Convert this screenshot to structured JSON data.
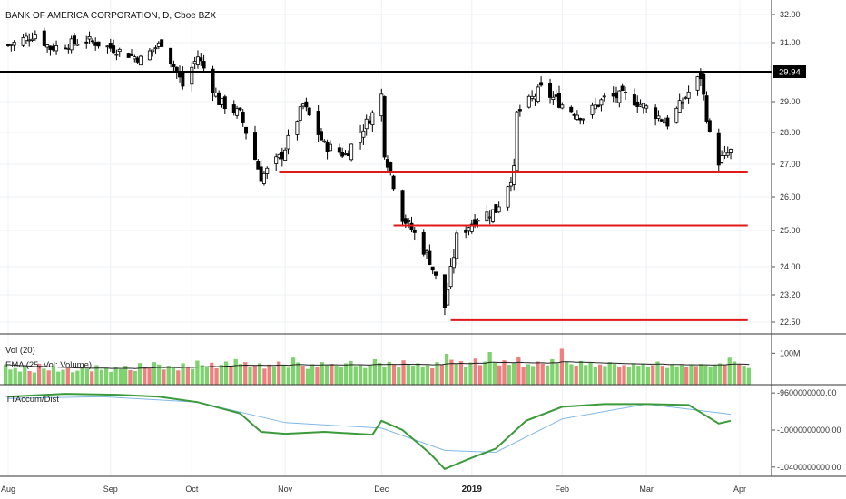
{
  "chart_data": {
    "type": "candlestick",
    "title": "BANK OF AMERICA CORPORATION, D, Cboe BZX",
    "x_labels": [
      {
        "label": "Aug",
        "date": "2018-08-01"
      },
      {
        "label": "Sep",
        "date": "2018-09-04"
      },
      {
        "label": "Oct",
        "date": "2018-10-01"
      },
      {
        "label": "Nov",
        "date": "2018-11-01"
      },
      {
        "label": "Dec",
        "date": "2018-12-03"
      },
      {
        "label": "2019",
        "date": "2019-01-02",
        "bold": true
      },
      {
        "label": "Feb",
        "date": "2019-02-01"
      },
      {
        "label": "Mar",
        "date": "2019-03-01"
      },
      {
        "label": "Apr",
        "date": "2019-04-01"
      }
    ],
    "price_axis": {
      "ticks": [
        "32.00",
        "31.00",
        "29.00",
        "28.00",
        "27.00",
        "26.00",
        "25.00",
        "24.00",
        "23.20",
        "22.50"
      ],
      "range": [
        22.3,
        32.25
      ],
      "current_price_label": "29.94",
      "current_price": 29.94
    },
    "close_path": [
      [
        "2018-08-01",
        30.9
      ],
      [
        "2018-08-10",
        31.3
      ],
      [
        "2018-08-15",
        30.8
      ],
      [
        "2018-08-27",
        31.1
      ],
      [
        "2018-09-07",
        30.7
      ],
      [
        "2018-09-14",
        30.4
      ],
      [
        "2018-09-21",
        31.0
      ],
      [
        "2018-09-28",
        29.5
      ],
      [
        "2018-10-03",
        30.5
      ],
      [
        "2018-10-10",
        29.0
      ],
      [
        "2018-10-17",
        28.6
      ],
      [
        "2018-10-24",
        26.6
      ],
      [
        "2018-10-31",
        27.3
      ],
      [
        "2018-11-07",
        28.9
      ],
      [
        "2018-11-14",
        27.6
      ],
      [
        "2018-11-21",
        27.3
      ],
      [
        "2018-11-30",
        28.6
      ],
      [
        "2018-12-03",
        29.2
      ],
      [
        "2018-12-04",
        27.4
      ],
      [
        "2018-12-10",
        25.4
      ],
      [
        "2018-12-14",
        24.9
      ],
      [
        "2018-12-19",
        24.2
      ],
      [
        "2018-12-24",
        22.9
      ],
      [
        "2018-12-28",
        24.8
      ],
      [
        "2019-01-04",
        25.4
      ],
      [
        "2019-01-10",
        25.6
      ],
      [
        "2019-01-16",
        26.8
      ],
      [
        "2019-01-17",
        28.6
      ],
      [
        "2019-01-25",
        29.4
      ],
      [
        "2019-02-01",
        28.9
      ],
      [
        "2019-02-08",
        28.5
      ],
      [
        "2019-02-15",
        29.1
      ],
      [
        "2019-02-22",
        29.2
      ],
      [
        "2019-03-01",
        28.8
      ],
      [
        "2019-03-08",
        28.3
      ],
      [
        "2019-03-15",
        29.3
      ],
      [
        "2019-03-19",
        29.8
      ],
      [
        "2019-03-22",
        27.9
      ],
      [
        "2019-03-25",
        27.1
      ],
      [
        "2019-03-29",
        27.4
      ]
    ],
    "horizontal_lines": [
      {
        "price": 29.94,
        "color": "#000000",
        "from": "2018-08-01",
        "to": "2019-03-31"
      },
      {
        "price": 26.75,
        "color": "#e01919",
        "from": "2018-10-30",
        "to": "2019-03-31"
      },
      {
        "price": 25.15,
        "color": "#e01919",
        "from": "2018-12-07",
        "to": "2019-03-31"
      },
      {
        "price": 22.55,
        "color": "#e01919",
        "from": "2018-12-26",
        "to": "2019-03-31"
      }
    ],
    "volume_panel": {
      "label_vol": "Vol (20)",
      "label_ema": "EMA (25, Vol: Volume)",
      "axis_tick": "100M",
      "axis_value": 100,
      "range": [
        0,
        150
      ],
      "unit": "M",
      "values": [
        62,
        45,
        50,
        38,
        58,
        40,
        35,
        65,
        48,
        42,
        55,
        38,
        44,
        50,
        36,
        41,
        52,
        47,
        39,
        60,
        44,
        49,
        37,
        53,
        46,
        58,
        43,
        40,
        67,
        55,
        48,
        70,
        62,
        45,
        58,
        50,
        42,
        66,
        52,
        47,
        75,
        60,
        55,
        68,
        49,
        61,
        72,
        58,
        80,
        64,
        70,
        53,
        59,
        66,
        48,
        62,
        56,
        72,
        60,
        51,
        85,
        69,
        58,
        47,
        63,
        55,
        70,
        60,
        64,
        58,
        52,
        66,
        74,
        57,
        62,
        50,
        60,
        80,
        68,
        55,
        71,
        63,
        54,
        76,
        61,
        58,
        66,
        52,
        60,
        49,
        70,
        62,
        98,
        78,
        64,
        73,
        55,
        69,
        82,
        60,
        72,
        104,
        68,
        59,
        76,
        61,
        67,
        88,
        54,
        63,
        57,
        72,
        65,
        59,
        80,
        66,
        115,
        71,
        63,
        58,
        74,
        60,
        68,
        55,
        62,
        57,
        70,
        64,
        52,
        60,
        55,
        66,
        58,
        63,
        54,
        60,
        72,
        58,
        50,
        63,
        56,
        61,
        53,
        62,
        57,
        64,
        59,
        55,
        61,
        66,
        60,
        85,
        72,
        63,
        58,
        50
      ]
    },
    "indicator_panel": {
      "label": "TTAccum/Dist",
      "axis_ticks": [
        "-9600000000.00",
        "-10000000000.00",
        "-10400000000.00"
      ],
      "axis_values": [
        -9600000000,
        -10000000000,
        -10400000000
      ],
      "range": [
        -10480000000,
        -9540000000
      ],
      "line_path": [
        [
          "2018-08-01",
          -9640000000.0
        ],
        [
          "2018-08-20",
          -9610000000.0
        ],
        [
          "2018-09-07",
          -9620000000.0
        ],
        [
          "2018-09-20",
          -9640000000.0
        ],
        [
          "2018-10-03",
          -9700000000.0
        ],
        [
          "2018-10-17",
          -9820000000.0
        ],
        [
          "2018-10-24",
          -10020000000.0
        ],
        [
          "2018-11-01",
          -10040000000.0
        ],
        [
          "2018-11-14",
          -10020000000.0
        ],
        [
          "2018-11-30",
          -10050000000.0
        ],
        [
          "2018-12-03",
          -9900000000.0
        ],
        [
          "2018-12-10",
          -10000000000.0
        ],
        [
          "2018-12-19",
          -10250000000.0
        ],
        [
          "2018-12-24",
          -10420000000.0
        ],
        [
          "2019-01-02",
          -10300000000.0
        ],
        [
          "2019-01-10",
          -10200000000.0
        ],
        [
          "2019-01-20",
          -9900000000.0
        ],
        [
          "2019-02-01",
          -9750000000.0
        ],
        [
          "2019-02-15",
          -9720000000.0
        ],
        [
          "2019-03-01",
          -9720000000.0
        ],
        [
          "2019-03-15",
          -9730000000.0
        ],
        [
          "2019-03-25",
          -9930000000.0
        ],
        [
          "2019-03-29",
          -9900000000.0
        ]
      ],
      "signal_path": [
        [
          "2018-08-01",
          -9660000000.0
        ],
        [
          "2018-09-01",
          -9640000000.0
        ],
        [
          "2018-10-03",
          -9700000000.0
        ],
        [
          "2018-11-01",
          -9920000000.0
        ],
        [
          "2018-12-03",
          -9980000000.0
        ],
        [
          "2018-12-24",
          -10220000000.0
        ],
        [
          "2019-01-10",
          -10240000000.0
        ],
        [
          "2019-02-01",
          -9880000000.0
        ],
        [
          "2019-03-01",
          -9720000000.0
        ],
        [
          "2019-03-29",
          -9830000000.0
        ]
      ]
    },
    "colors": {
      "up_volume": "#7ed36f",
      "down_volume": "#f08080",
      "ema": "#222222",
      "accum_dist": "#3b9a3b",
      "signal": "#7fb8e8",
      "candle": "#000000",
      "support": "#e01919",
      "resistance": "#000000"
    },
    "grid": true
  }
}
